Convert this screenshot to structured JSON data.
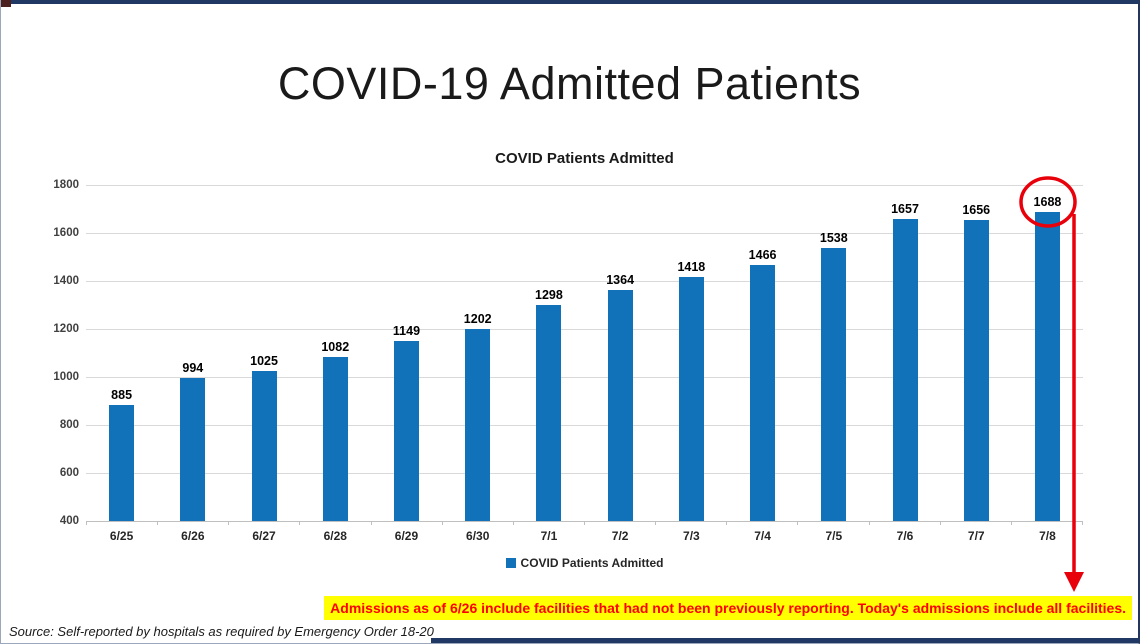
{
  "page": {
    "title": "COVID-19 Admitted Patients",
    "callout": "Admissions as of 6/26 include facilities that had not been previously reporting. Today's admissions include all facilities.",
    "source_note": "Source: Self-reported by hospitals as required by Emergency Order 18-20"
  },
  "chart_data": {
    "type": "bar",
    "title": "COVID Patients Admitted",
    "series_name": "COVID Patients Admitted",
    "categories": [
      "6/25",
      "6/26",
      "6/27",
      "6/28",
      "6/29",
      "6/30",
      "7/1",
      "7/2",
      "7/3",
      "7/4",
      "7/5",
      "7/6",
      "7/7",
      "7/8"
    ],
    "values": [
      885,
      994,
      1025,
      1082,
      1149,
      1202,
      1298,
      1364,
      1418,
      1466,
      1538,
      1657,
      1656,
      1688
    ],
    "ylim": [
      400,
      1800
    ],
    "ytick_step": 200,
    "grid": true,
    "legend_position": "bottom",
    "bar_color": "#1172BA",
    "annotation": {
      "type": "circle-and-down-arrow",
      "target_category": "7/8",
      "target_value": 1688,
      "color": "#e8000b"
    }
  },
  "colors": {
    "bar_blue": "#1172BA",
    "accent_navy": "#203864",
    "callout_background": "#FFFF00",
    "callout_text": "#FF0000",
    "annotation_red": "#E8000B",
    "gridline_gray": "#D9D9D9",
    "top_corner_maroon": "#4D2020"
  }
}
